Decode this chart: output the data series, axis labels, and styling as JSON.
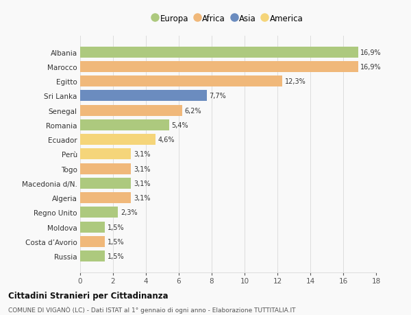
{
  "categories": [
    "Albania",
    "Marocco",
    "Egitto",
    "Sri Lanka",
    "Senegal",
    "Romania",
    "Ecuador",
    "Perù",
    "Togo",
    "Macedonia d/N.",
    "Algeria",
    "Regno Unito",
    "Moldova",
    "Costa d’Avorio",
    "Russia"
  ],
  "values": [
    16.9,
    16.9,
    12.3,
    7.7,
    6.2,
    5.4,
    4.6,
    3.1,
    3.1,
    3.1,
    3.1,
    2.3,
    1.5,
    1.5,
    1.5
  ],
  "labels": [
    "16,9%",
    "16,9%",
    "12,3%",
    "7,7%",
    "6,2%",
    "5,4%",
    "4,6%",
    "3,1%",
    "3,1%",
    "3,1%",
    "3,1%",
    "2,3%",
    "1,5%",
    "1,5%",
    "1,5%"
  ],
  "continents": [
    "Europa",
    "Africa",
    "Africa",
    "Asia",
    "Africa",
    "Europa",
    "America",
    "America",
    "Africa",
    "Europa",
    "Africa",
    "Europa",
    "Europa",
    "Africa",
    "Europa"
  ],
  "colors": {
    "Europa": "#adc97e",
    "Africa": "#f0b87a",
    "Asia": "#6b8cbf",
    "America": "#f5d57a"
  },
  "legend_order": [
    "Europa",
    "Africa",
    "Asia",
    "America"
  ],
  "title": "Cittadini Stranieri per Cittadinanza",
  "subtitle": "COMUNE DI VIGANÒ (LC) - Dati ISTAT al 1° gennaio di ogni anno - Elaborazione TUTTITALIA.IT",
  "xlim": [
    0,
    18
  ],
  "xticks": [
    0,
    2,
    4,
    6,
    8,
    10,
    12,
    14,
    16,
    18
  ],
  "bg_color": "#f9f9f9",
  "grid_color": "#dddddd"
}
